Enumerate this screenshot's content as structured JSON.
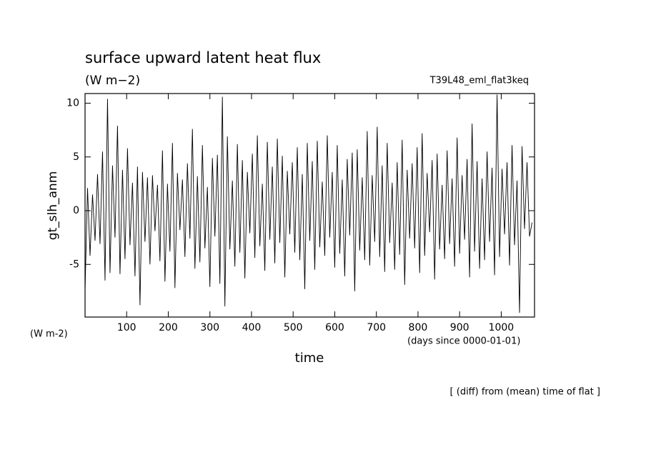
{
  "chart_data": {
    "type": "line",
    "title": "surface upward latent heat flux",
    "subtitle": "(W m−2)",
    "run_label": "T39L48_eml_flat3keq",
    "y_label": "gt_slh_anm",
    "y_unit": "(W m-2)",
    "x_label": "time",
    "x_unit": "(days since 0000-01-01)",
    "note": "[ (diff) from (mean) time of flat ]",
    "color": "#000000",
    "xlim": [
      0,
      1080
    ],
    "ylim": [
      -9.9,
      10.9
    ],
    "xticks": [
      100,
      200,
      300,
      400,
      500,
      600,
      700,
      800,
      900,
      1000
    ],
    "yticks": [
      -5,
      0,
      5,
      10
    ],
    "x": [
      0,
      6,
      12,
      18,
      24,
      30,
      36,
      42,
      48,
      54,
      60,
      66,
      72,
      78,
      84,
      90,
      96,
      102,
      108,
      114,
      120,
      126,
      132,
      138,
      144,
      150,
      156,
      162,
      168,
      174,
      180,
      186,
      192,
      198,
      204,
      210,
      216,
      222,
      228,
      234,
      240,
      246,
      252,
      258,
      264,
      270,
      276,
      282,
      288,
      294,
      300,
      306,
      312,
      318,
      324,
      330,
      336,
      342,
      348,
      354,
      360,
      366,
      372,
      378,
      384,
      390,
      396,
      402,
      408,
      414,
      420,
      426,
      432,
      438,
      444,
      450,
      456,
      462,
      468,
      474,
      480,
      486,
      492,
      498,
      504,
      510,
      516,
      522,
      528,
      534,
      540,
      546,
      552,
      558,
      564,
      570,
      576,
      582,
      588,
      594,
      600,
      606,
      612,
      618,
      624,
      630,
      636,
      642,
      648,
      654,
      660,
      666,
      672,
      678,
      684,
      690,
      696,
      702,
      708,
      714,
      720,
      726,
      732,
      738,
      744,
      750,
      756,
      762,
      768,
      774,
      780,
      786,
      792,
      798,
      804,
      810,
      816,
      822,
      828,
      834,
      840,
      846,
      852,
      858,
      864,
      870,
      876,
      882,
      888,
      894,
      900,
      906,
      912,
      918,
      924,
      930,
      936,
      942,
      948,
      954,
      960,
      966,
      972,
      978,
      984,
      990,
      996,
      1002,
      1008,
      1014,
      1020,
      1026,
      1032,
      1038,
      1044,
      1050,
      1056,
      1062,
      1068,
      1074
    ],
    "values": [
      -7.5,
      2.1,
      -4.2,
      1.5,
      -2.8,
      3.4,
      -3.1,
      5.5,
      -6.5,
      10.4,
      -5.8,
      4.2,
      -2.5,
      7.9,
      -5.9,
      3.8,
      -4.5,
      5.8,
      -3.2,
      2.6,
      -6.1,
      4.1,
      -8.8,
      3.6,
      -2.9,
      3.1,
      -5.0,
      3.3,
      -1.9,
      2.4,
      -4.7,
      5.6,
      -6.6,
      2.5,
      -3.8,
      6.3,
      -7.2,
      3.5,
      -1.8,
      2.9,
      -4.3,
      4.4,
      -2.6,
      7.6,
      -5.4,
      3.2,
      -4.8,
      6.1,
      -3.5,
      2.2,
      -7.1,
      4.9,
      -2.4,
      5.2,
      -6.8,
      10.6,
      -8.9,
      6.9,
      -3.6,
      2.8,
      -5.2,
      6.2,
      -3.9,
      4.7,
      -6.3,
      3.6,
      -2.1,
      5.3,
      -4.4,
      7.0,
      -3.3,
      2.5,
      -5.6,
      6.4,
      -2.7,
      4.1,
      -4.9,
      6.7,
      -3.0,
      5.1,
      -6.2,
      3.7,
      -2.2,
      4.5,
      -3.9,
      5.9,
      -4.6,
      3.4,
      -7.3,
      6.3,
      -2.8,
      4.6,
      -5.5,
      6.5,
      -3.4,
      2.7,
      -4.2,
      7.0,
      -2.5,
      3.6,
      -5.3,
      6.1,
      -4.0,
      2.9,
      -6.1,
      4.8,
      -2.3,
      5.4,
      -7.5,
      5.7,
      -3.7,
      3.1,
      -4.6,
      7.4,
      -5.1,
      3.3,
      -2.9,
      7.8,
      -4.3,
      4.2,
      -5.7,
      6.3,
      -3.0,
      2.6,
      -5.5,
      4.5,
      -4.1,
      6.6,
      -6.9,
      3.8,
      -2.6,
      4.4,
      -3.5,
      5.9,
      -5.8,
      7.2,
      -4.2,
      3.5,
      -2.0,
      4.7,
      -6.4,
      5.3,
      -3.6,
      2.4,
      -4.5,
      5.6,
      -3.1,
      3.0,
      -5.2,
      6.8,
      -4.0,
      3.3,
      -2.7,
      4.8,
      -6.2,
      8.1,
      -3.8,
      4.6,
      -5.4,
      3.0,
      -4.6,
      5.5,
      -2.9,
      4.0,
      -6.0,
      10.8,
      -4.3,
      3.9,
      -2.2,
      4.5,
      -5.1,
      6.1,
      -3.2,
      2.8,
      -9.5,
      6.0,
      -1.7,
      4.5,
      -2.4,
      -1.1
    ]
  }
}
